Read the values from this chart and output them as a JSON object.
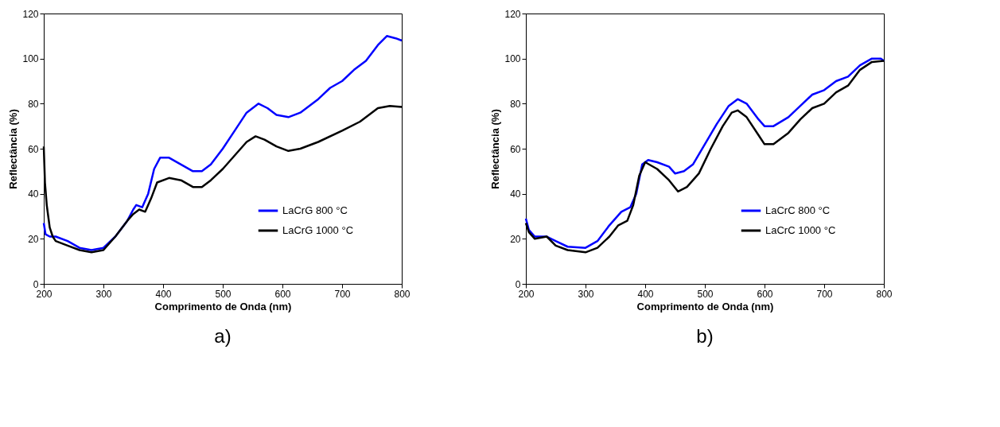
{
  "chart_data": [
    {
      "type": "line",
      "xlabel": "Comprimento de Onda (nm)",
      "ylabel": "Reflectância (%)",
      "xlim": [
        200,
        800
      ],
      "xticks": [
        200,
        300,
        400,
        500,
        600,
        700,
        800
      ],
      "ylim": [
        0,
        120
      ],
      "yticks": [
        0,
        20,
        40,
        60,
        80,
        100,
        120
      ],
      "legend": "bottom right",
      "annotations": [
        "a)"
      ],
      "series": [
        {
          "name": "LaCrG 800 °C",
          "color": "#0000ff",
          "x": [
            200,
            203,
            210,
            220,
            240,
            260,
            280,
            300,
            320,
            340,
            350,
            355,
            365,
            375,
            385,
            395,
            410,
            430,
            450,
            465,
            480,
            500,
            520,
            540,
            560,
            575,
            590,
            610,
            630,
            660,
            680,
            700,
            720,
            740,
            760,
            775,
            790,
            800
          ],
          "values": [
            27,
            22,
            21,
            21,
            19,
            16,
            15,
            16,
            21,
            28,
            33,
            35,
            34,
            40,
            51,
            56,
            56,
            53,
            50,
            50,
            53,
            60,
            68,
            76,
            80,
            78,
            75,
            74,
            76,
            82,
            87,
            90,
            95,
            99,
            106,
            110,
            109,
            108
          ]
        },
        {
          "name": "LaCrG 1000 °C",
          "color": "#000000",
          "x": [
            200,
            202,
            205,
            210,
            215,
            220,
            240,
            260,
            280,
            300,
            320,
            340,
            350,
            360,
            370,
            380,
            390,
            410,
            430,
            450,
            465,
            480,
            500,
            520,
            540,
            555,
            570,
            590,
            610,
            630,
            660,
            700,
            730,
            760,
            780,
            800
          ],
          "values": [
            61,
            45,
            35,
            25,
            21,
            19,
            17,
            15,
            14,
            15,
            21,
            28,
            31,
            33,
            32,
            38,
            45,
            47,
            46,
            43,
            43,
            46,
            51,
            57,
            63,
            65.5,
            64,
            61,
            59,
            60,
            63,
            68,
            72,
            78,
            79,
            78.5
          ]
        }
      ]
    },
    {
      "type": "line",
      "xlabel": "Comprimento de Onda (nm)",
      "ylabel": "Reflectância (%)",
      "xlim": [
        200,
        800
      ],
      "xticks": [
        200,
        300,
        400,
        500,
        600,
        700,
        800
      ],
      "ylim": [
        0,
        120
      ],
      "yticks": [
        0,
        20,
        40,
        60,
        80,
        100,
        120
      ],
      "legend": "bottom right",
      "annotations": [
        "b)"
      ],
      "series": [
        {
          "name": "LaCrC 800 °C",
          "color": "#0000ff",
          "x": [
            200,
            205,
            215,
            235,
            250,
            270,
            300,
            320,
            340,
            360,
            375,
            385,
            395,
            405,
            420,
            440,
            450,
            465,
            480,
            500,
            520,
            540,
            555,
            570,
            590,
            600,
            615,
            640,
            660,
            680,
            700,
            720,
            740,
            760,
            780,
            795,
            800
          ],
          "values": [
            29,
            24,
            21,
            21,
            19,
            16.5,
            16,
            19,
            26,
            32,
            34,
            40,
            53,
            55,
            54,
            52,
            49,
            50,
            53,
            62,
            71,
            79,
            82,
            80,
            73,
            70,
            70,
            74,
            79,
            84,
            86,
            90,
            92,
            97,
            100,
            100,
            99
          ]
        },
        {
          "name": "LaCrC 1000 °C",
          "color": "#000000",
          "x": [
            200,
            205,
            215,
            235,
            250,
            270,
            300,
            320,
            340,
            355,
            370,
            380,
            390,
            400,
            420,
            440,
            455,
            470,
            490,
            510,
            530,
            545,
            555,
            570,
            590,
            600,
            615,
            640,
            660,
            680,
            700,
            720,
            740,
            760,
            780,
            800
          ],
          "values": [
            27,
            23,
            20,
            21,
            17,
            15,
            14,
            16,
            21,
            26,
            28,
            35,
            48,
            54,
            51,
            46,
            41,
            43,
            49,
            60,
            70,
            76,
            77,
            74,
            66,
            62,
            62,
            67,
            73,
            78,
            80,
            85,
            88,
            95,
            98.5,
            99
          ]
        }
      ]
    }
  ]
}
